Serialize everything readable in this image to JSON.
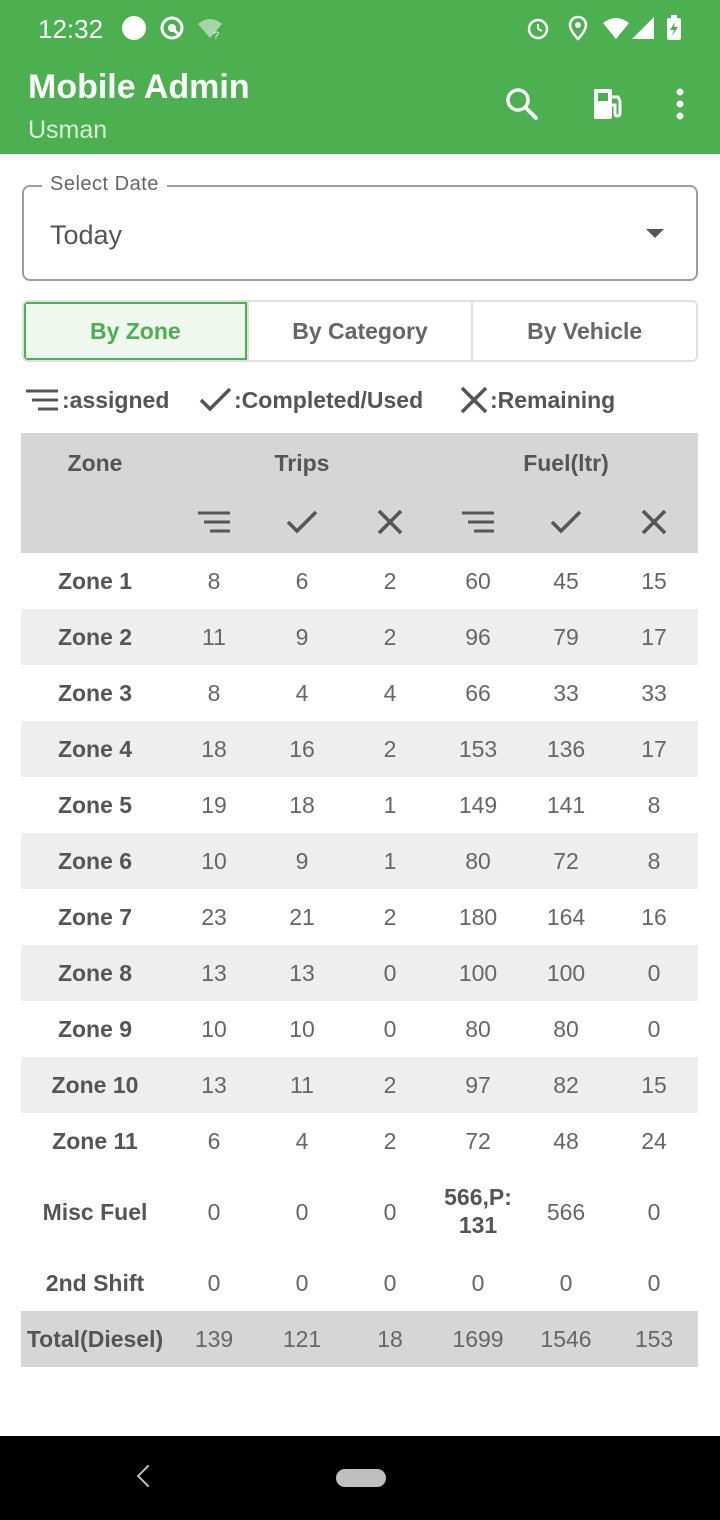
{
  "status_bar": {
    "time": "12:32"
  },
  "app_bar": {
    "title": "Mobile Admin",
    "subtitle": "Usman"
  },
  "date_select": {
    "label": "Select Date",
    "value": "Today"
  },
  "tabs": [
    {
      "label": "By Zone",
      "active": true
    },
    {
      "label": "By Category",
      "active": false
    },
    {
      "label": "By Vehicle",
      "active": false
    }
  ],
  "legend": {
    "assigned": ":assigned",
    "completed": ":Completed/Used",
    "remaining": ":Remaining"
  },
  "table": {
    "headers": {
      "zone": "Zone",
      "trips": "Trips",
      "fuel": "Fuel(ltr)"
    },
    "rows": [
      {
        "zone": "Zone 1",
        "t_a": "8",
        "t_c": "6",
        "t_r": "2",
        "f_a": "60",
        "f_c": "45",
        "f_r": "15"
      },
      {
        "zone": "Zone 2",
        "t_a": "11",
        "t_c": "9",
        "t_r": "2",
        "f_a": "96",
        "f_c": "79",
        "f_r": "17"
      },
      {
        "zone": "Zone 3",
        "t_a": "8",
        "t_c": "4",
        "t_r": "4",
        "f_a": "66",
        "f_c": "33",
        "f_r": "33"
      },
      {
        "zone": "Zone 4",
        "t_a": "18",
        "t_c": "16",
        "t_r": "2",
        "f_a": "153",
        "f_c": "136",
        "f_r": "17"
      },
      {
        "zone": "Zone 5",
        "t_a": "19",
        "t_c": "18",
        "t_r": "1",
        "f_a": "149",
        "f_c": "141",
        "f_r": "8"
      },
      {
        "zone": "Zone 6",
        "t_a": "10",
        "t_c": "9",
        "t_r": "1",
        "f_a": "80",
        "f_c": "72",
        "f_r": "8"
      },
      {
        "zone": "Zone 7",
        "t_a": "23",
        "t_c": "21",
        "t_r": "2",
        "f_a": "180",
        "f_c": "164",
        "f_r": "16"
      },
      {
        "zone": "Zone 8",
        "t_a": "13",
        "t_c": "13",
        "t_r": "0",
        "f_a": "100",
        "f_c": "100",
        "f_r": "0"
      },
      {
        "zone": "Zone 9",
        "t_a": "10",
        "t_c": "10",
        "t_r": "0",
        "f_a": "80",
        "f_c": "80",
        "f_r": "0"
      },
      {
        "zone": "Zone 10",
        "t_a": "13",
        "t_c": "11",
        "t_r": "2",
        "f_a": "97",
        "f_c": "82",
        "f_r": "15"
      },
      {
        "zone": "Zone 11",
        "t_a": "6",
        "t_c": "4",
        "t_r": "2",
        "f_a": "72",
        "f_c": "48",
        "f_r": "24"
      }
    ],
    "misc": {
      "zone": "Misc Fuel",
      "t_a": "0",
      "t_c": "0",
      "t_r": "0",
      "f_a_line1": "566,P:",
      "f_a_line2": "131",
      "f_c": "566",
      "f_r": "0"
    },
    "shift2": {
      "zone": "2nd Shift",
      "t_a": "0",
      "t_c": "0",
      "t_r": "0",
      "f_a": "0",
      "f_c": "0",
      "f_r": "0"
    },
    "total": {
      "zone": "Total(Diesel)",
      "t_a": "139",
      "t_c": "121",
      "t_r": "18",
      "f_a": "1699",
      "f_c": "1546",
      "f_r": "153"
    }
  },
  "icons": {
    "assigned": "sort-lines-icon",
    "completed": "check-icon",
    "remaining": "close-x-icon"
  },
  "colors": {
    "primary": "#4caf50",
    "header_gray": "#d6d6d6",
    "row_alt": "#eeeeee"
  }
}
